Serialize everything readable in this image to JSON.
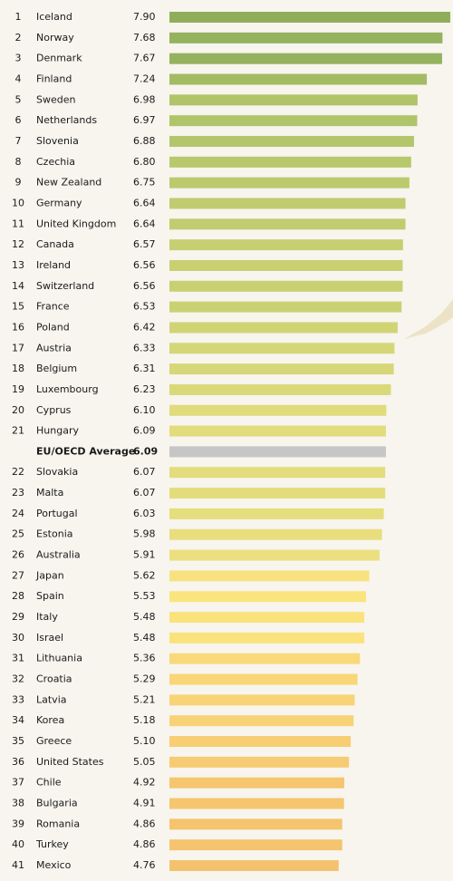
{
  "chart_data": {
    "type": "bar",
    "orientation": "horizontal",
    "ranks": [
      1,
      2,
      3,
      4,
      5,
      6,
      7,
      8,
      9,
      10,
      11,
      12,
      13,
      14,
      15,
      16,
      17,
      18,
      19,
      20,
      21,
      null,
      22,
      23,
      24,
      25,
      26,
      27,
      28,
      29,
      30,
      31,
      32,
      33,
      34,
      35,
      36,
      37,
      38,
      39,
      40,
      41
    ],
    "categories": [
      "Iceland",
      "Norway",
      "Denmark",
      "Finland",
      "Sweden",
      "Netherlands",
      "Slovenia",
      "Czechia",
      "New Zealand",
      "Germany",
      "United Kingdom",
      "Canada",
      "Ireland",
      "Switzerland",
      "France",
      "Poland",
      "Austria",
      "Belgium",
      "Luxembourg",
      "Cyprus",
      "Hungary",
      "EU/OECD Average",
      "Slovakia",
      "Malta",
      "Portugal",
      "Estonia",
      "Australia",
      "Japan",
      "Spain",
      "Italy",
      "Israel",
      "Lithuania",
      "Croatia",
      "Latvia",
      "Korea",
      "Greece",
      "United States",
      "Chile",
      "Bulgaria",
      "Romania",
      "Turkey",
      "Mexico"
    ],
    "values": [
      7.9,
      7.68,
      7.67,
      7.24,
      6.98,
      6.97,
      6.88,
      6.8,
      6.75,
      6.64,
      6.64,
      6.57,
      6.56,
      6.56,
      6.53,
      6.42,
      6.33,
      6.31,
      6.23,
      6.1,
      6.09,
      6.09,
      6.07,
      6.07,
      6.03,
      5.98,
      5.91,
      5.62,
      5.53,
      5.48,
      5.48,
      5.36,
      5.29,
      5.21,
      5.18,
      5.1,
      5.05,
      4.92,
      4.91,
      4.86,
      4.86,
      4.76
    ],
    "value_labels": [
      "7.90",
      "7.68",
      "7.67",
      "7.24",
      "6.98",
      "6.97",
      "6.88",
      "6.80",
      "6.75",
      "6.64",
      "6.64",
      "6.57",
      "6.56",
      "6.56",
      "6.53",
      "6.42",
      "6.33",
      "6.31",
      "6.23",
      "6.10",
      "6.09",
      "6.09",
      "6.07",
      "6.07",
      "6.03",
      "5.98",
      "5.91",
      "5.62",
      "5.53",
      "5.48",
      "5.48",
      "5.36",
      "5.29",
      "5.21",
      "5.18",
      "5.10",
      "5.05",
      "4.92",
      "4.91",
      "4.86",
      "4.86",
      "4.76"
    ],
    "colors": [
      "#8fae5c",
      "#95b25e",
      "#95b25e",
      "#a3bb63",
      "#b0c46a",
      "#b0c46a",
      "#b4c66b",
      "#b8c86c",
      "#bbca6d",
      "#c0cc6f",
      "#c0cc6f",
      "#c6cf71",
      "#c8d072",
      "#c8d072",
      "#cad173",
      "#d0d475",
      "#d4d677",
      "#d6d778",
      "#dad979",
      "#e0db7b",
      "#e2dc7c",
      "#c6c6c6",
      "#e3dc7c",
      "#e3dc7c",
      "#e6dd7d",
      "#e8de7e",
      "#ebdf7f",
      "#f7e27f",
      "#fae47e",
      "#fae37d",
      "#fae37d",
      "#f9d97a",
      "#f9d678",
      "#f8d377",
      "#f8d276",
      "#f7ce74",
      "#f7cb73",
      "#f5c66f",
      "#f5c56f",
      "#f5c46e",
      "#f5c46e",
      "#f4c26d"
    ],
    "xlim": [
      0,
      7.9
    ]
  }
}
